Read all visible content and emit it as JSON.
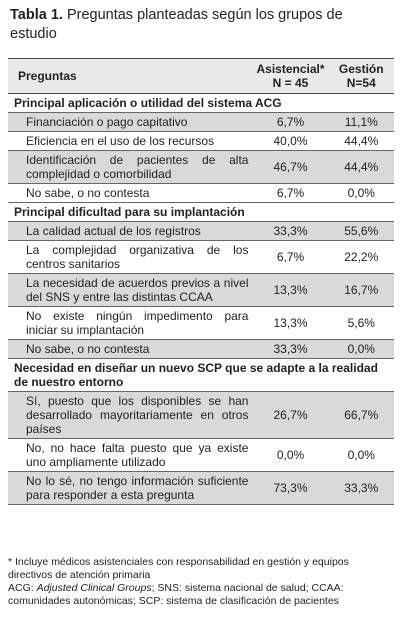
{
  "caption": {
    "label": "Tabla 1.",
    "text": "Preguntas planteadas según los grupos de estudio"
  },
  "table": {
    "header": {
      "question": "Preguntas",
      "group1": "Asistencial*",
      "group1_n": "N = 45",
      "group2": "Gestión",
      "group2_n": "N=54"
    },
    "sections": [
      {
        "title": "Principal aplicación o utilidad del sistema ACG",
        "rows": [
          [
            "Financiación o pago capitativo",
            "6,7%",
            "11,1%"
          ],
          [
            "Eficiencia en el uso de los recursos",
            "40,0%",
            "44,4%"
          ],
          [
            "Identificación de pacientes de alta complejidad o comorbilidad",
            "46,7%",
            "44,4%"
          ],
          [
            "No sabe, o no contesta",
            "6,7%",
            "0,0%"
          ]
        ]
      },
      {
        "title": "Principal dificultad para su implantación",
        "rows": [
          [
            "La calidad actual de los registros",
            "33,3%",
            "55,6%"
          ],
          [
            "La complejidad organizativa de los centros sanitarios",
            "6,7%",
            "22,2%"
          ],
          [
            "La necesidad de acuerdos previos a nivel del SNS y entre las distintas CCAA",
            "13,3%",
            "16,7%"
          ],
          [
            "No existe ningún impedimento para iniciar su implantación",
            "13,3%",
            "5,6%"
          ],
          [
            "No sabe, o no contesta",
            "33,3%",
            "0,0%"
          ]
        ]
      },
      {
        "title": "Necesidad en diseñar un nuevo SCP que se adapte a la realidad de nuestro entorno",
        "rows": [
          [
            "Sí, puesto que los disponibles se han desarrollado mayoritariamente en otros países",
            "26,7%",
            "66,7%"
          ],
          [
            "No, no hace falta puesto que ya existe uno ampliamente utilizado",
            "0,0%",
            "0,0%"
          ],
          [
            "No lo sé, no tengo información suficiente para responder a esta pregunta",
            "73,3%",
            "33,3%"
          ]
        ]
      }
    ]
  },
  "footnotes": {
    "note1": "* Incluye médicos asistenciales con responsabilidad en gestión y equipos directivos de atención primaria",
    "note2_a": "ACG: ",
    "note2_b": "Adjusted Clinical Groups",
    "note2_c": "; SNS: sistema nacional de salud; CCAA: comunidades autonómicas; SCP: sistema de clasificación de pacientes"
  }
}
